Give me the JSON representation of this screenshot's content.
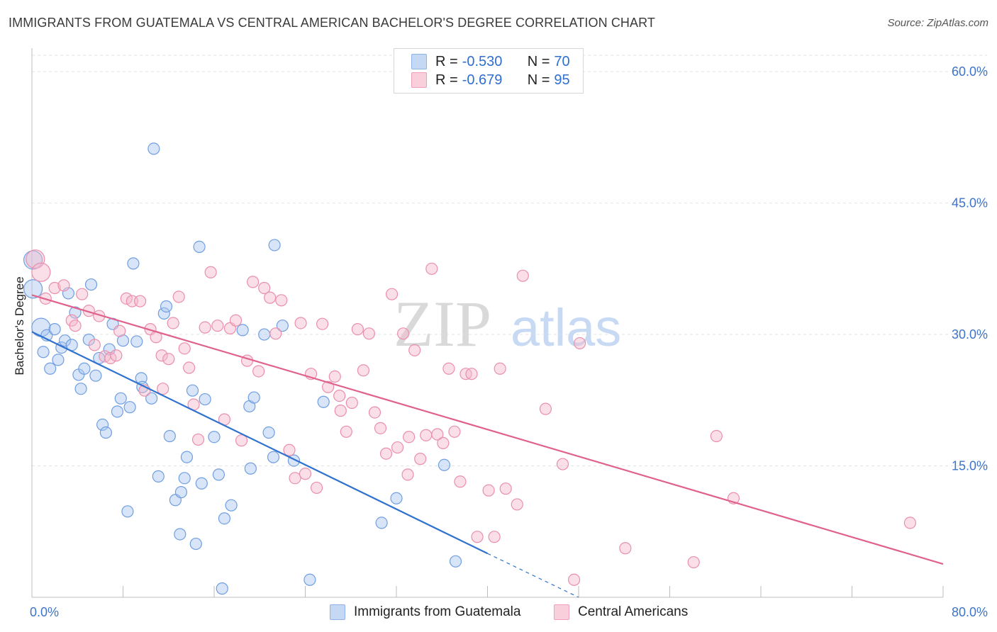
{
  "title": "IMMIGRANTS FROM GUATEMALA VS CENTRAL AMERICAN BACHELOR'S DEGREE CORRELATION CHART",
  "source": "Source: ZipAtlas.com",
  "watermark": {
    "zip": "ZIP",
    "atlas": "atlas"
  },
  "legend": {
    "r_label": "R =",
    "n_label": "N =",
    "rows": [
      {
        "r": "-0.530",
        "n": "70",
        "color": "#a9c6ef"
      },
      {
        "r": "-0.679",
        "n": "95",
        "color": "#f5b8cb"
      }
    ]
  },
  "chart_data": {
    "type": "scatter",
    "ylabel": "Bachelor's Degree",
    "xlim": [
      0,
      80
    ],
    "ylim": [
      0,
      63
    ],
    "x_tick_labels": [
      "0.0%",
      "80.0%"
    ],
    "y_ticks": [
      15,
      30,
      45,
      60
    ],
    "y_tick_labels": [
      "15.0%",
      "30.0%",
      "45.0%",
      "60.0%"
    ],
    "legend_position": "top-center",
    "grid": true,
    "series": [
      {
        "name": "Immigrants from Guatemala",
        "color": "#a9c6ef",
        "stroke": "#6f9ee0",
        "line_color": "#2f72d0",
        "trend": {
          "x0": 0,
          "y0": 30.3,
          "x1": 40,
          "y1": 5.0,
          "dash_x1": 48,
          "dash_y1": 0
        },
        "points": [
          [
            0.1,
            38.5
          ],
          [
            0.1,
            35.2
          ],
          [
            0.8,
            30.8
          ],
          [
            1.0,
            28.0
          ],
          [
            1.3,
            29.9
          ],
          [
            1.6,
            26.1
          ],
          [
            2.0,
            30.6
          ],
          [
            2.3,
            27.1
          ],
          [
            2.6,
            28.5
          ],
          [
            2.9,
            29.3
          ],
          [
            3.2,
            34.7
          ],
          [
            3.5,
            28.8
          ],
          [
            3.8,
            32.5
          ],
          [
            4.1,
            25.4
          ],
          [
            4.3,
            23.8
          ],
          [
            4.6,
            26.1
          ],
          [
            5.0,
            29.4
          ],
          [
            5.2,
            35.7
          ],
          [
            5.6,
            25.3
          ],
          [
            5.9,
            27.3
          ],
          [
            6.2,
            19.7
          ],
          [
            6.5,
            18.8
          ],
          [
            6.8,
            28.3
          ],
          [
            7.1,
            31.2
          ],
          [
            7.5,
            21.2
          ],
          [
            7.8,
            22.7
          ],
          [
            8.0,
            29.3
          ],
          [
            8.4,
            9.8
          ],
          [
            8.6,
            21.7
          ],
          [
            8.9,
            38.1
          ],
          [
            9.2,
            29.2
          ],
          [
            9.6,
            25.0
          ],
          [
            9.7,
            24.0
          ],
          [
            10.5,
            22.7
          ],
          [
            10.7,
            51.2
          ],
          [
            11.1,
            13.8
          ],
          [
            11.6,
            32.4
          ],
          [
            11.8,
            33.2
          ],
          [
            12.1,
            18.4
          ],
          [
            12.6,
            11.1
          ],
          [
            13.0,
            7.2
          ],
          [
            13.1,
            12.0
          ],
          [
            13.4,
            13.6
          ],
          [
            13.6,
            16.0
          ],
          [
            14.1,
            23.6
          ],
          [
            14.4,
            6.1
          ],
          [
            14.7,
            40.0
          ],
          [
            14.9,
            13.0
          ],
          [
            15.2,
            22.6
          ],
          [
            16.0,
            18.3
          ],
          [
            16.4,
            14.0
          ],
          [
            16.7,
            1.0
          ],
          [
            16.9,
            9.0
          ],
          [
            17.5,
            10.5
          ],
          [
            18.5,
            30.5
          ],
          [
            19.1,
            21.8
          ],
          [
            19.2,
            14.7
          ],
          [
            19.5,
            22.8
          ],
          [
            20.4,
            30.0
          ],
          [
            20.8,
            18.8
          ],
          [
            21.2,
            16.0
          ],
          [
            21.3,
            40.2
          ],
          [
            23.0,
            15.6
          ],
          [
            24.4,
            2.0
          ],
          [
            25.6,
            22.3
          ],
          [
            30.7,
            8.5
          ],
          [
            32.0,
            11.3
          ],
          [
            36.2,
            15.1
          ],
          [
            37.2,
            4.1
          ],
          [
            22.0,
            31.0
          ]
        ]
      },
      {
        "name": "Central Americans",
        "color": "#f5b8cb",
        "stroke": "#ea8fab",
        "line_color": "#e0628c",
        "trend": {
          "x0": 0,
          "y0": 34.5,
          "x1": 80,
          "y1": 3.8
        },
        "points": [
          [
            0.3,
            38.6
          ],
          [
            0.8,
            37.1
          ],
          [
            1.2,
            34.1
          ],
          [
            2.0,
            35.3
          ],
          [
            2.8,
            35.6
          ],
          [
            3.5,
            31.6
          ],
          [
            3.8,
            31.0
          ],
          [
            4.4,
            34.6
          ],
          [
            5.0,
            32.7
          ],
          [
            5.5,
            28.8
          ],
          [
            5.9,
            32.1
          ],
          [
            6.4,
            27.5
          ],
          [
            6.9,
            27.3
          ],
          [
            7.4,
            27.6
          ],
          [
            7.7,
            30.4
          ],
          [
            8.3,
            34.1
          ],
          [
            8.8,
            33.8
          ],
          [
            9.5,
            33.8
          ],
          [
            9.9,
            23.6
          ],
          [
            10.4,
            30.6
          ],
          [
            10.9,
            29.7
          ],
          [
            11.4,
            27.6
          ],
          [
            12.0,
            27.2
          ],
          [
            12.4,
            31.3
          ],
          [
            12.9,
            34.3
          ],
          [
            13.4,
            28.4
          ],
          [
            13.8,
            26.2
          ],
          [
            14.2,
            22.0
          ],
          [
            14.6,
            18.0
          ],
          [
            15.2,
            30.8
          ],
          [
            15.7,
            37.1
          ],
          [
            16.3,
            31.0
          ],
          [
            16.9,
            20.3
          ],
          [
            17.4,
            30.7
          ],
          [
            17.9,
            31.6
          ],
          [
            18.4,
            17.9
          ],
          [
            18.9,
            27.0
          ],
          [
            19.4,
            36.0
          ],
          [
            19.9,
            25.8
          ],
          [
            20.4,
            35.3
          ],
          [
            20.9,
            34.2
          ],
          [
            21.4,
            30.1
          ],
          [
            21.9,
            33.9
          ],
          [
            22.6,
            16.8
          ],
          [
            23.1,
            13.6
          ],
          [
            23.6,
            31.3
          ],
          [
            24.0,
            14.1
          ],
          [
            24.5,
            25.5
          ],
          [
            25.0,
            12.5
          ],
          [
            25.5,
            31.2
          ],
          [
            26.0,
            24.0
          ],
          [
            26.6,
            25.2
          ],
          [
            27.1,
            21.3
          ],
          [
            27.6,
            18.9
          ],
          [
            28.1,
            22.2
          ],
          [
            28.6,
            30.6
          ],
          [
            29.1,
            25.9
          ],
          [
            29.6,
            30.1
          ],
          [
            30.1,
            21.1
          ],
          [
            30.6,
            19.3
          ],
          [
            31.1,
            16.4
          ],
          [
            31.6,
            34.6
          ],
          [
            32.1,
            17.1
          ],
          [
            32.6,
            30.1
          ],
          [
            33.1,
            18.3
          ],
          [
            33.6,
            28.2
          ],
          [
            34.1,
            15.8
          ],
          [
            34.6,
            18.5
          ],
          [
            35.1,
            37.5
          ],
          [
            35.6,
            18.6
          ],
          [
            36.1,
            17.6
          ],
          [
            36.6,
            26.1
          ],
          [
            37.1,
            18.9
          ],
          [
            37.6,
            13.2
          ],
          [
            38.1,
            25.5
          ],
          [
            38.6,
            25.5
          ],
          [
            39.1,
            6.9
          ],
          [
            40.1,
            12.2
          ],
          [
            40.6,
            6.9
          ],
          [
            41.1,
            26.1
          ],
          [
            41.6,
            12.4
          ],
          [
            42.6,
            10.6
          ],
          [
            43.1,
            36.7
          ],
          [
            45.1,
            21.5
          ],
          [
            46.6,
            15.2
          ],
          [
            47.6,
            2.0
          ],
          [
            48.1,
            29.0
          ],
          [
            52.1,
            5.6
          ],
          [
            58.1,
            4.0
          ],
          [
            60.1,
            18.4
          ],
          [
            61.6,
            11.3
          ],
          [
            77.1,
            8.5
          ],
          [
            27.0,
            23.0
          ],
          [
            33.0,
            14.0
          ],
          [
            11.5,
            23.8
          ]
        ]
      }
    ]
  }
}
